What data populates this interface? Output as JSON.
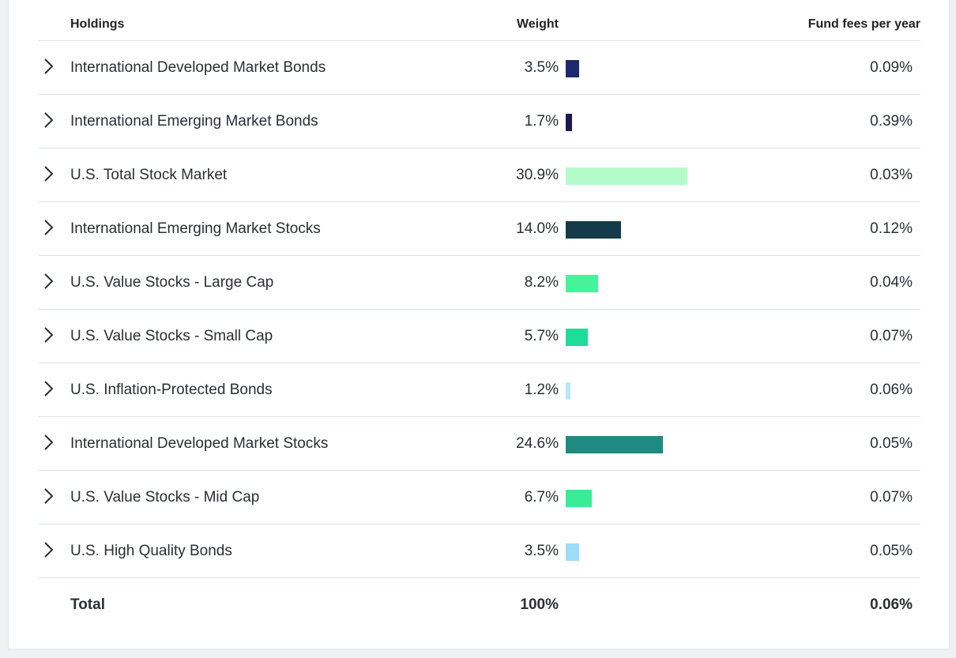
{
  "table": {
    "headers": {
      "holdings": "Holdings",
      "weight": "Weight",
      "fees": "Fund fees per year"
    },
    "rows": [
      {
        "name": "International Developed Market Bonds",
        "weight_label": "3.5%",
        "weight": 3.5,
        "fee": "0.09%",
        "color": "#1f2a6e"
      },
      {
        "name": "International Emerging Market Bonds",
        "weight_label": "1.7%",
        "weight": 1.7,
        "fee": "0.39%",
        "color": "#1a1a4a"
      },
      {
        "name": "U.S. Total Stock Market",
        "weight_label": "30.9%",
        "weight": 30.9,
        "fee": "0.03%",
        "color": "#b4fbcc"
      },
      {
        "name": "International Emerging Market Stocks",
        "weight_label": "14.0%",
        "weight": 14.0,
        "fee": "0.12%",
        "color": "#153a4a"
      },
      {
        "name": "U.S. Value Stocks - Large Cap",
        "weight_label": "8.2%",
        "weight": 8.2,
        "fee": "0.04%",
        "color": "#45f39a"
      },
      {
        "name": "U.S. Value Stocks - Small Cap",
        "weight_label": "5.7%",
        "weight": 5.7,
        "fee": "0.07%",
        "color": "#1fdc9a"
      },
      {
        "name": "U.S. Inflation-Protected Bonds",
        "weight_label": "1.2%",
        "weight": 1.2,
        "fee": "0.06%",
        "color": "#b6eaf8"
      },
      {
        "name": "International Developed Market Stocks",
        "weight_label": "24.6%",
        "weight": 24.6,
        "fee": "0.05%",
        "color": "#1f8a82"
      },
      {
        "name": "U.S. Value Stocks - Mid Cap",
        "weight_label": "6.7%",
        "weight": 6.7,
        "fee": "0.07%",
        "color": "#3ceb98"
      },
      {
        "name": "U.S. High Quality Bonds",
        "weight_label": "3.5%",
        "weight": 3.5,
        "fee": "0.05%",
        "color": "#9bdcfa"
      }
    ],
    "total": {
      "label": "Total",
      "weight": "100%",
      "fee": "0.06%"
    }
  }
}
